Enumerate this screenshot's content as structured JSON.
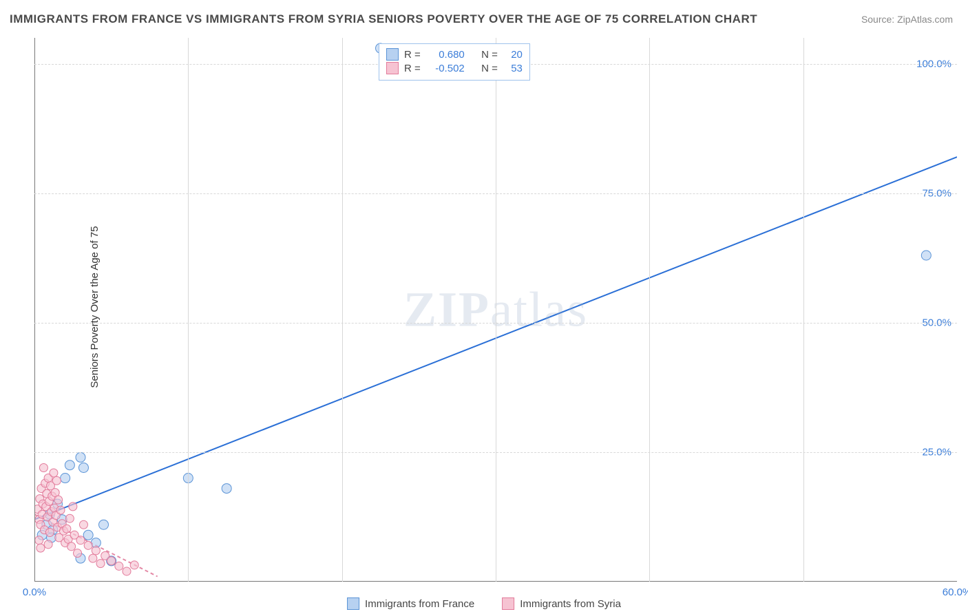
{
  "title": "IMMIGRANTS FROM FRANCE VS IMMIGRANTS FROM SYRIA SENIORS POVERTY OVER THE AGE OF 75 CORRELATION CHART",
  "source_label": "Source:",
  "source_value": "ZipAtlas.com",
  "y_axis_label": "Seniors Poverty Over the Age of 75",
  "watermark_a": "ZIP",
  "watermark_b": "atlas",
  "chart": {
    "type": "scatter",
    "xlim": [
      0,
      60
    ],
    "ylim": [
      0,
      105
    ],
    "x_ticks": [
      0,
      60
    ],
    "x_tick_labels": [
      "0.0%",
      "60.0%"
    ],
    "y_ticks": [
      25,
      50,
      75,
      100
    ],
    "y_tick_labels": [
      "25.0%",
      "50.0%",
      "75.0%",
      "100.0%"
    ],
    "vgrid": [
      10,
      20,
      30,
      40,
      50
    ],
    "hgrid": [
      25,
      50,
      75,
      100
    ],
    "background_color": "#ffffff",
    "grid_color": "#d8d8d8",
    "axis_color": "#777777",
    "series": [
      {
        "name": "Immigrants from France",
        "fill": "#b7d1f1",
        "stroke": "#5a93d6",
        "trend_color": "#2a6fd6",
        "trend_dash": "none",
        "R": "0.680",
        "N": "20",
        "marker_radius": 7,
        "trend": {
          "x1": 0,
          "y1": 12,
          "x2": 60,
          "y2": 82
        },
        "points": [
          [
            0.5,
            9
          ],
          [
            0.8,
            11
          ],
          [
            1.0,
            13
          ],
          [
            1.2,
            10
          ],
          [
            1.5,
            15
          ],
          [
            1.8,
            12
          ],
          [
            2.0,
            20
          ],
          [
            2.3,
            22.5
          ],
          [
            3.0,
            24
          ],
          [
            3.2,
            22
          ],
          [
            3.5,
            9
          ],
          [
            4.0,
            7.5
          ],
          [
            4.5,
            11
          ],
          [
            5.0,
            4
          ],
          [
            3.0,
            4.5
          ],
          [
            10.0,
            20
          ],
          [
            12.5,
            18
          ],
          [
            22.5,
            103
          ],
          [
            58.0,
            63
          ],
          [
            1.1,
            8.5
          ]
        ]
      },
      {
        "name": "Immigrants from Syria",
        "fill": "#f6c3d2",
        "stroke": "#e27a9a",
        "trend_color": "#e48aa6",
        "trend_dash": "5,4",
        "R": "-0.502",
        "N": "53",
        "marker_radius": 6,
        "trend": {
          "x1": 0,
          "y1": 13,
          "x2": 8,
          "y2": 1
        },
        "points": [
          [
            0.2,
            14
          ],
          [
            0.3,
            12
          ],
          [
            0.35,
            16
          ],
          [
            0.4,
            11
          ],
          [
            0.45,
            18
          ],
          [
            0.5,
            13
          ],
          [
            0.55,
            15
          ],
          [
            0.6,
            22
          ],
          [
            0.65,
            10
          ],
          [
            0.7,
            19
          ],
          [
            0.75,
            14.5
          ],
          [
            0.8,
            17
          ],
          [
            0.85,
            12.5
          ],
          [
            0.9,
            20
          ],
          [
            0.95,
            15.5
          ],
          [
            1.0,
            9.5
          ],
          [
            1.05,
            18.5
          ],
          [
            1.1,
            13.5
          ],
          [
            1.15,
            16.5
          ],
          [
            1.2,
            11.5
          ],
          [
            1.25,
            21
          ],
          [
            1.3,
            14.2
          ],
          [
            1.35,
            17.2
          ],
          [
            1.4,
            12.8
          ],
          [
            1.45,
            19.5
          ],
          [
            1.5,
            10.5
          ],
          [
            1.55,
            15.8
          ],
          [
            1.6,
            8.5
          ],
          [
            1.7,
            13.8
          ],
          [
            1.8,
            11.2
          ],
          [
            1.9,
            9.8
          ],
          [
            2.0,
            7.5
          ],
          [
            2.1,
            10.2
          ],
          [
            2.2,
            8.2
          ],
          [
            2.3,
            12.2
          ],
          [
            2.4,
            6.8
          ],
          [
            2.6,
            9.0
          ],
          [
            2.8,
            5.5
          ],
          [
            3.0,
            8.0
          ],
          [
            3.2,
            11.0
          ],
          [
            3.5,
            7.0
          ],
          [
            3.8,
            4.5
          ],
          [
            4.0,
            6.0
          ],
          [
            4.3,
            3.5
          ],
          [
            4.6,
            5.0
          ],
          [
            5.0,
            4.0
          ],
          [
            5.5,
            3.0
          ],
          [
            6.0,
            2.0
          ],
          [
            6.5,
            3.2
          ],
          [
            2.5,
            14.5
          ],
          [
            0.3,
            8.0
          ],
          [
            0.4,
            6.5
          ],
          [
            0.9,
            7.2
          ]
        ]
      }
    ]
  },
  "stats_box": {
    "rows": [
      {
        "swatch_fill": "#b7d1f1",
        "swatch_stroke": "#5a93d6",
        "R_label": "R =",
        "R": "0.680",
        "N_label": "N =",
        "N": "20"
      },
      {
        "swatch_fill": "#f6c3d2",
        "swatch_stroke": "#e27a9a",
        "R_label": "R =",
        "R": "-0.502",
        "N_label": "N =",
        "N": "53"
      }
    ]
  },
  "bottom_legend": [
    {
      "swatch_fill": "#b7d1f1",
      "swatch_stroke": "#5a93d6",
      "label": "Immigrants from France"
    },
    {
      "swatch_fill": "#f6c3d2",
      "swatch_stroke": "#e27a9a",
      "label": "Immigrants from Syria"
    }
  ]
}
